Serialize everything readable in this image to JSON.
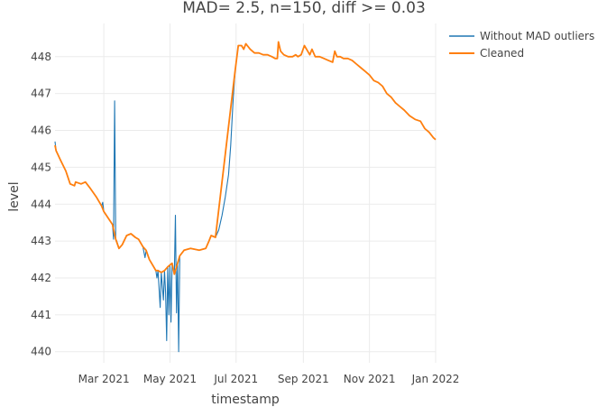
{
  "chart_data": {
    "type": "line",
    "title": "MAD= 2.5, n=150, diff >= 0.03",
    "xlabel": "timestamp",
    "ylabel": "level",
    "x_range": [
      "2021-01-15",
      "2022-01-01"
    ],
    "ylim": [
      439.7,
      448.9
    ],
    "x_ticks": [
      {
        "date": "2021-03-01",
        "label": "Mar 2021"
      },
      {
        "date": "2021-05-01",
        "label": "May 2021"
      },
      {
        "date": "2021-07-01",
        "label": "Jul 2021"
      },
      {
        "date": "2021-09-01",
        "label": "Sep 2021"
      },
      {
        "date": "2021-11-01",
        "label": "Nov 2021"
      },
      {
        "date": "2022-01-01",
        "label": "Jan 2022"
      }
    ],
    "y_ticks": [
      440,
      441,
      442,
      443,
      444,
      445,
      446,
      447,
      448
    ],
    "grid": true,
    "legend_position": "top-right",
    "series": [
      {
        "name": "Without MAD outliers",
        "color": "#1f77b4",
        "points": [
          [
            "2021-01-15",
            445.7
          ],
          [
            "2021-01-16",
            445.45
          ],
          [
            "2021-01-20",
            445.2
          ],
          [
            "2021-01-25",
            444.9
          ],
          [
            "2021-01-29",
            444.55
          ],
          [
            "2021-02-02",
            444.5
          ],
          [
            "2021-02-03",
            444.6
          ],
          [
            "2021-02-08",
            444.55
          ],
          [
            "2021-02-12",
            444.6
          ],
          [
            "2021-02-16",
            444.45
          ],
          [
            "2021-02-22",
            444.2
          ],
          [
            "2021-02-27",
            443.95
          ],
          [
            "2021-02-28",
            444.05
          ],
          [
            "2021-03-01",
            443.8
          ],
          [
            "2021-03-09",
            443.45
          ],
          [
            "2021-03-10",
            443.05
          ],
          [
            "2021-03-11",
            446.8
          ],
          [
            "2021-03-12",
            443.05
          ],
          [
            "2021-03-13",
            443.0
          ],
          [
            "2021-03-15",
            442.8
          ],
          [
            "2021-03-18",
            442.9
          ],
          [
            "2021-03-22",
            443.15
          ],
          [
            "2021-03-26",
            443.2
          ],
          [
            "2021-03-30",
            443.1
          ],
          [
            "2021-04-02",
            443.05
          ],
          [
            "2021-04-06",
            442.85
          ],
          [
            "2021-04-08",
            442.55
          ],
          [
            "2021-04-09",
            442.75
          ],
          [
            "2021-04-12",
            442.5
          ],
          [
            "2021-04-16",
            442.3
          ],
          [
            "2021-04-18",
            442.2
          ],
          [
            "2021-04-19",
            442.0
          ],
          [
            "2021-04-20",
            442.2
          ],
          [
            "2021-04-22",
            441.2
          ],
          [
            "2021-04-23",
            442.15
          ],
          [
            "2021-04-25",
            441.4
          ],
          [
            "2021-04-26",
            442.2
          ],
          [
            "2021-04-27",
            441.6
          ],
          [
            "2021-04-28",
            440.3
          ],
          [
            "2021-04-29",
            442.3
          ],
          [
            "2021-04-30",
            441.0
          ],
          [
            "2021-05-01",
            442.35
          ],
          [
            "2021-05-02",
            440.8
          ],
          [
            "2021-05-03",
            442.4
          ],
          [
            "2021-05-05",
            442.1
          ],
          [
            "2021-05-06",
            443.7
          ],
          [
            "2021-05-07",
            441.05
          ],
          [
            "2021-05-08",
            442.4
          ],
          [
            "2021-05-09",
            440.0
          ],
          [
            "2021-05-10",
            442.6
          ],
          [
            "2021-05-14",
            442.75
          ],
          [
            "2021-05-20",
            442.8
          ],
          [
            "2021-05-28",
            442.75
          ],
          [
            "2021-06-03",
            442.8
          ],
          [
            "2021-06-06",
            443.0
          ],
          [
            "2021-06-08",
            443.15
          ],
          [
            "2021-06-12",
            443.1
          ],
          [
            "2021-06-15",
            443.3
          ],
          [
            "2021-06-18",
            443.7
          ],
          [
            "2021-06-21",
            444.2
          ],
          [
            "2021-06-24",
            444.8
          ],
          [
            "2021-06-26",
            445.6
          ],
          [
            "2021-06-28",
            446.7
          ],
          [
            "2021-06-30",
            447.6
          ],
          [
            "2021-07-03",
            448.3
          ],
          [
            "2021-07-06",
            448.3
          ],
          [
            "2021-07-08",
            448.2
          ],
          [
            "2021-07-10",
            448.35
          ],
          [
            "2021-07-14",
            448.2
          ],
          [
            "2021-07-18",
            448.1
          ],
          [
            "2021-07-22",
            448.1
          ],
          [
            "2021-07-26",
            448.05
          ],
          [
            "2021-07-30",
            448.05
          ],
          [
            "2021-08-03",
            448.0
          ],
          [
            "2021-08-06",
            447.95
          ],
          [
            "2021-08-08",
            447.95
          ],
          [
            "2021-08-09",
            448.4
          ],
          [
            "2021-08-11",
            448.15
          ],
          [
            "2021-08-14",
            448.05
          ],
          [
            "2021-08-18",
            448.0
          ],
          [
            "2021-08-22",
            448.0
          ],
          [
            "2021-08-25",
            448.05
          ],
          [
            "2021-08-27",
            448.0
          ],
          [
            "2021-08-30",
            448.05
          ],
          [
            "2021-09-02",
            448.3
          ],
          [
            "2021-09-04",
            448.2
          ],
          [
            "2021-09-07",
            448.05
          ],
          [
            "2021-09-09",
            448.2
          ],
          [
            "2021-09-12",
            448.0
          ],
          [
            "2021-09-16",
            448.0
          ],
          [
            "2021-09-20",
            447.95
          ],
          [
            "2021-09-24",
            447.9
          ],
          [
            "2021-09-28",
            447.85
          ],
          [
            "2021-09-30",
            448.15
          ],
          [
            "2021-10-02",
            448.0
          ],
          [
            "2021-10-05",
            448.0
          ],
          [
            "2021-10-08",
            447.95
          ],
          [
            "2021-10-12",
            447.95
          ],
          [
            "2021-10-16",
            447.9
          ],
          [
            "2021-10-20",
            447.8
          ],
          [
            "2021-10-24",
            447.7
          ],
          [
            "2021-10-28",
            447.6
          ],
          [
            "2021-11-01",
            447.5
          ],
          [
            "2021-11-05",
            447.35
          ],
          [
            "2021-11-09",
            447.3
          ],
          [
            "2021-11-13",
            447.2
          ],
          [
            "2021-11-17",
            447.0
          ],
          [
            "2021-11-21",
            446.9
          ],
          [
            "2021-11-25",
            446.75
          ],
          [
            "2021-11-29",
            446.65
          ],
          [
            "2021-12-03",
            446.55
          ],
          [
            "2021-12-08",
            446.4
          ],
          [
            "2021-12-13",
            446.3
          ],
          [
            "2021-12-18",
            446.25
          ],
          [
            "2021-12-20",
            446.15
          ],
          [
            "2021-12-22",
            446.05
          ],
          [
            "2021-12-26",
            445.95
          ],
          [
            "2021-12-30",
            445.8
          ],
          [
            "2022-01-01",
            445.75
          ]
        ]
      },
      {
        "name": "Cleaned",
        "color": "#ff7f0e",
        "points": [
          [
            "2021-01-15",
            445.6
          ],
          [
            "2021-01-16",
            445.45
          ],
          [
            "2021-01-20",
            445.2
          ],
          [
            "2021-01-25",
            444.9
          ],
          [
            "2021-01-29",
            444.55
          ],
          [
            "2021-02-02",
            444.5
          ],
          [
            "2021-02-03",
            444.6
          ],
          [
            "2021-02-08",
            444.55
          ],
          [
            "2021-02-12",
            444.6
          ],
          [
            "2021-02-16",
            444.45
          ],
          [
            "2021-02-22",
            444.2
          ],
          [
            "2021-02-27",
            443.95
          ],
          [
            "2021-03-01",
            443.8
          ],
          [
            "2021-03-09",
            443.45
          ],
          [
            "2021-03-12",
            443.05
          ],
          [
            "2021-03-15",
            442.8
          ],
          [
            "2021-03-18",
            442.9
          ],
          [
            "2021-03-22",
            443.15
          ],
          [
            "2021-03-26",
            443.2
          ],
          [
            "2021-03-30",
            443.1
          ],
          [
            "2021-04-02",
            443.05
          ],
          [
            "2021-04-06",
            442.85
          ],
          [
            "2021-04-09",
            442.75
          ],
          [
            "2021-04-12",
            442.5
          ],
          [
            "2021-04-16",
            442.3
          ],
          [
            "2021-04-18",
            442.2
          ],
          [
            "2021-04-20",
            442.2
          ],
          [
            "2021-04-23",
            442.15
          ],
          [
            "2021-04-26",
            442.2
          ],
          [
            "2021-04-29",
            442.3
          ],
          [
            "2021-05-01",
            442.35
          ],
          [
            "2021-05-03",
            442.4
          ],
          [
            "2021-05-05",
            442.1
          ],
          [
            "2021-05-08",
            442.4
          ],
          [
            "2021-05-10",
            442.6
          ],
          [
            "2021-05-14",
            442.75
          ],
          [
            "2021-05-20",
            442.8
          ],
          [
            "2021-05-28",
            442.75
          ],
          [
            "2021-06-03",
            442.8
          ],
          [
            "2021-06-06",
            443.0
          ],
          [
            "2021-06-08",
            443.15
          ],
          [
            "2021-06-12",
            443.1
          ],
          [
            "2021-06-30",
            447.6
          ],
          [
            "2021-07-03",
            448.3
          ],
          [
            "2021-07-06",
            448.3
          ],
          [
            "2021-07-08",
            448.2
          ],
          [
            "2021-07-10",
            448.35
          ],
          [
            "2021-07-14",
            448.2
          ],
          [
            "2021-07-18",
            448.1
          ],
          [
            "2021-07-22",
            448.1
          ],
          [
            "2021-07-26",
            448.05
          ],
          [
            "2021-07-30",
            448.05
          ],
          [
            "2021-08-03",
            448.0
          ],
          [
            "2021-08-06",
            447.95
          ],
          [
            "2021-08-08",
            447.95
          ],
          [
            "2021-08-09",
            448.4
          ],
          [
            "2021-08-11",
            448.15
          ],
          [
            "2021-08-14",
            448.05
          ],
          [
            "2021-08-18",
            448.0
          ],
          [
            "2021-08-22",
            448.0
          ],
          [
            "2021-08-25",
            448.05
          ],
          [
            "2021-08-27",
            448.0
          ],
          [
            "2021-08-30",
            448.05
          ],
          [
            "2021-09-02",
            448.3
          ],
          [
            "2021-09-04",
            448.2
          ],
          [
            "2021-09-07",
            448.05
          ],
          [
            "2021-09-09",
            448.2
          ],
          [
            "2021-09-12",
            448.0
          ],
          [
            "2021-09-16",
            448.0
          ],
          [
            "2021-09-20",
            447.95
          ],
          [
            "2021-09-24",
            447.9
          ],
          [
            "2021-09-28",
            447.85
          ],
          [
            "2021-09-30",
            448.15
          ],
          [
            "2021-10-02",
            448.0
          ],
          [
            "2021-10-05",
            448.0
          ],
          [
            "2021-10-08",
            447.95
          ],
          [
            "2021-10-12",
            447.95
          ],
          [
            "2021-10-16",
            447.9
          ],
          [
            "2021-10-20",
            447.8
          ],
          [
            "2021-10-24",
            447.7
          ],
          [
            "2021-10-28",
            447.6
          ],
          [
            "2021-11-01",
            447.5
          ],
          [
            "2021-11-05",
            447.35
          ],
          [
            "2021-11-09",
            447.3
          ],
          [
            "2021-11-13",
            447.2
          ],
          [
            "2021-11-17",
            447.0
          ],
          [
            "2021-11-21",
            446.9
          ],
          [
            "2021-11-25",
            446.75
          ],
          [
            "2021-11-29",
            446.65
          ],
          [
            "2021-12-03",
            446.55
          ],
          [
            "2021-12-08",
            446.4
          ],
          [
            "2021-12-13",
            446.3
          ],
          [
            "2021-12-18",
            446.25
          ],
          [
            "2021-12-20",
            446.15
          ],
          [
            "2021-12-22",
            446.05
          ],
          [
            "2021-12-26",
            445.95
          ],
          [
            "2021-12-30",
            445.8
          ],
          [
            "2022-01-01",
            445.75
          ]
        ]
      }
    ]
  }
}
